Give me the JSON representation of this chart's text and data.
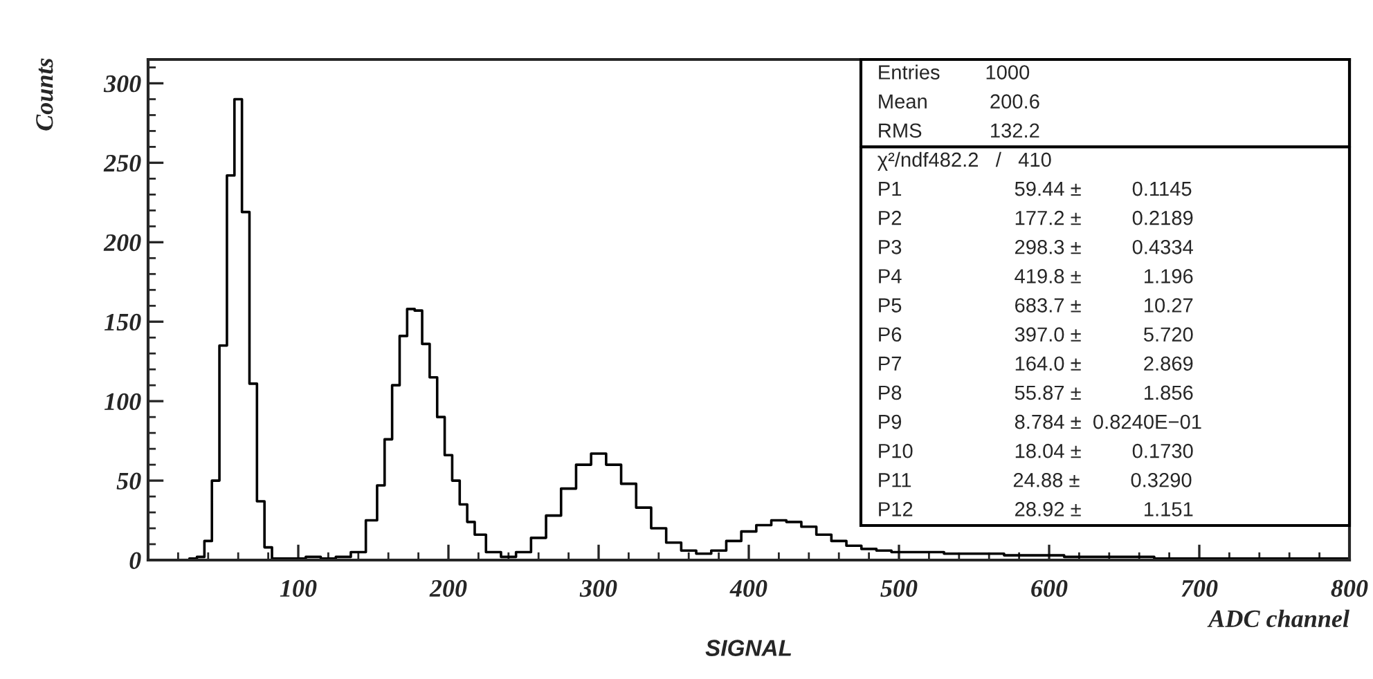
{
  "chart_data": {
    "type": "step",
    "ylabel": "Counts",
    "xlabel": "ADC channel",
    "x": [
      0,
      10,
      20,
      25,
      30,
      35,
      40,
      45,
      50,
      55,
      60,
      65,
      70,
      75,
      80,
      85,
      90,
      100,
      110,
      120,
      130,
      140,
      150,
      155,
      160,
      165,
      170,
      175,
      180,
      185,
      190,
      195,
      200,
      205,
      210,
      215,
      220,
      230,
      240,
      250,
      260,
      270,
      280,
      290,
      300,
      310,
      320,
      330,
      340,
      350,
      360,
      370,
      380,
      390,
      400,
      410,
      420,
      430,
      440,
      450,
      460,
      470,
      480,
      490,
      500,
      520,
      540,
      560,
      580,
      600,
      620,
      640,
      660,
      680,
      700,
      720,
      740,
      760,
      780,
      800
    ],
    "series": [
      {
        "color": "#000000",
        "values": [
          0,
          0,
          0,
          0,
          1,
          2,
          12,
          50,
          135,
          242,
          290,
          219,
          111,
          37,
          8,
          1,
          1,
          1,
          2,
          1,
          2,
          5,
          25,
          47,
          76,
          110,
          141,
          158,
          157,
          136,
          115,
          90,
          66,
          50,
          35,
          24,
          16,
          5,
          2,
          5,
          14,
          28,
          45,
          60,
          67,
          60,
          48,
          33,
          20,
          11,
          6,
          4,
          6,
          12,
          18,
          22,
          25,
          24,
          21,
          16,
          12,
          9,
          7,
          6,
          5,
          5,
          4,
          4,
          3,
          3,
          2,
          2,
          2,
          1,
          1,
          1,
          1,
          1,
          1,
          1
        ]
      }
    ],
    "xlim": [
      0,
      800
    ],
    "xticks": [
      100,
      200,
      300,
      400,
      500,
      600,
      700,
      800
    ],
    "ylim": [
      0,
      315
    ],
    "yticks": [
      0,
      50,
      100,
      150,
      200,
      250,
      300
    ],
    "grid": false,
    "legend": false,
    "annotations": [
      "SIGNAL",
      "Entries        1000",
      "Mean           200.6",
      "RMS            132.2",
      "χ²/ndf482.2   /   410",
      "P1                    59.44 ±         0.1145",
      "P2                    177.2 ±         0.2189",
      "P3                    298.3 ±         0.4334",
      "P4                    419.8 ±           1.196",
      "P5                    683.7 ±           10.27",
      "P6                    397.0 ±           5.720",
      "P7                    164.0 ±           2.869",
      "P8                    55.87 ±           1.856",
      "P9                    8.784 ±  0.8240E−01",
      "P10                  18.04 ±         0.1730",
      "P11                  24.88 ±         0.3290",
      "P12                  28.92 ±           1.151"
    ]
  }
}
